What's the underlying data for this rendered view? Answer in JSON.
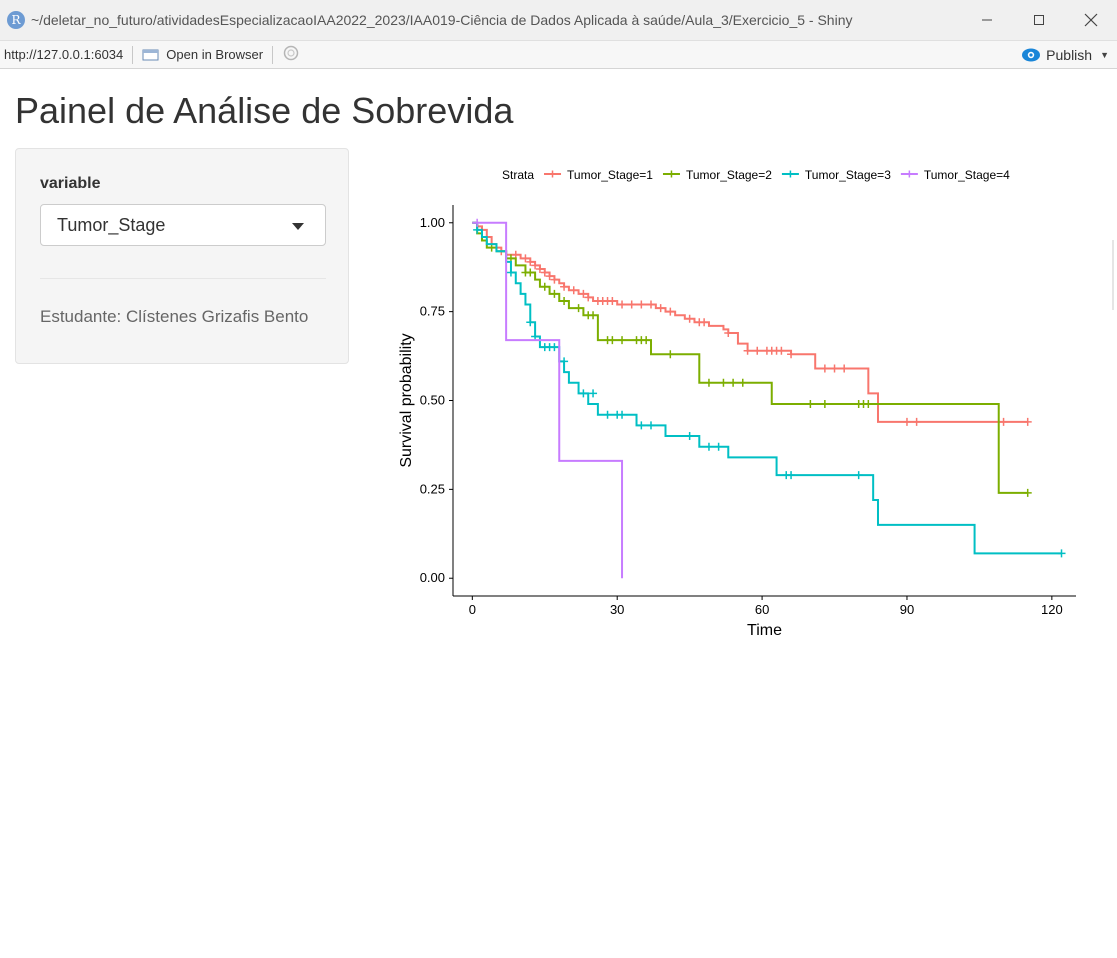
{
  "window": {
    "title": "~/deletar_no_futuro/atividadesEspecializacaoIAA2022_2023/IAA019-Ciência de Dados Aplicada à saúde/Aula_3/Exercicio_5 - Shiny",
    "logo_text": "R"
  },
  "toolbar": {
    "url": "http://127.0.0.1:6034",
    "open_browser_label": "Open in Browser",
    "publish_label": "Publish"
  },
  "page": {
    "title": "Painel de Análise de Sobrevida"
  },
  "sidebar": {
    "variable_label": "variable",
    "variable_value": "Tumor_Stage",
    "student": "Estudante: Clístenes Grizafis Bento"
  },
  "colors": {
    "stage1": "#F8766D",
    "stage2": "#7CAE00",
    "stage3": "#00BFC4",
    "stage4": "#C77CFF"
  },
  "chart_data": {
    "type": "line",
    "xlabel": "Time",
    "ylabel": "Survival probability",
    "xlim": [
      -4,
      125
    ],
    "ylim": [
      -0.05,
      1.05
    ],
    "xticks": [
      0,
      30,
      60,
      90,
      120
    ],
    "yticks": [
      0.0,
      0.25,
      0.5,
      0.75,
      1.0
    ],
    "ytick_labels": [
      "0.00",
      "0.25",
      "0.50",
      "0.75",
      "1.00"
    ],
    "grid": false,
    "legend": {
      "title": "Strata",
      "position": "top"
    },
    "series": [
      {
        "name": "Tumor_Stage=1",
        "color": "#F8766D",
        "x": [
          0,
          1,
          2,
          3,
          4,
          5,
          6,
          7,
          8,
          10,
          12,
          13,
          14,
          15,
          16,
          17,
          18,
          19,
          20,
          22,
          24,
          25,
          30,
          38,
          40,
          42,
          44,
          46,
          47,
          49,
          52,
          53,
          55,
          57,
          60,
          66,
          71,
          75,
          82,
          84,
          88,
          115
        ],
        "y": [
          1.0,
          0.99,
          0.98,
          0.96,
          0.94,
          0.93,
          0.92,
          0.91,
          0.91,
          0.9,
          0.89,
          0.88,
          0.87,
          0.86,
          0.85,
          0.84,
          0.83,
          0.82,
          0.81,
          0.8,
          0.79,
          0.78,
          0.77,
          0.76,
          0.75,
          0.74,
          0.73,
          0.72,
          0.72,
          0.71,
          0.7,
          0.69,
          0.66,
          0.64,
          0.64,
          0.63,
          0.59,
          0.59,
          0.52,
          0.44,
          0.44,
          0.44
        ],
        "censored": [
          [
            2,
            0.98
          ],
          [
            6,
            0.92
          ],
          [
            9,
            0.91
          ],
          [
            11,
            0.9
          ],
          [
            12,
            0.89
          ],
          [
            13,
            0.88
          ],
          [
            14,
            0.87
          ],
          [
            15,
            0.86
          ],
          [
            16,
            0.85
          ],
          [
            17,
            0.84
          ],
          [
            19,
            0.82
          ],
          [
            21,
            0.81
          ],
          [
            23,
            0.8
          ],
          [
            24,
            0.79
          ],
          [
            26,
            0.78
          ],
          [
            27,
            0.78
          ],
          [
            28,
            0.78
          ],
          [
            29,
            0.78
          ],
          [
            31,
            0.77
          ],
          [
            33,
            0.77
          ],
          [
            35,
            0.77
          ],
          [
            37,
            0.77
          ],
          [
            39,
            0.76
          ],
          [
            41,
            0.75
          ],
          [
            45,
            0.73
          ],
          [
            47,
            0.72
          ],
          [
            48,
            0.72
          ],
          [
            53,
            0.69
          ],
          [
            57,
            0.64
          ],
          [
            59,
            0.64
          ],
          [
            61,
            0.64
          ],
          [
            62,
            0.64
          ],
          [
            63,
            0.64
          ],
          [
            64,
            0.64
          ],
          [
            66,
            0.63
          ],
          [
            73,
            0.59
          ],
          [
            75,
            0.59
          ],
          [
            77,
            0.59
          ],
          [
            90,
            0.44
          ],
          [
            92,
            0.44
          ],
          [
            110,
            0.44
          ],
          [
            115,
            0.44
          ]
        ]
      },
      {
        "name": "Tumor_Stage=2",
        "color": "#7CAE00",
        "x": [
          0,
          1,
          2,
          3,
          5,
          7,
          9,
          11,
          13,
          14,
          16,
          18,
          20,
          23,
          26,
          30,
          37,
          40,
          47,
          62,
          109,
          115
        ],
        "y": [
          1.0,
          0.97,
          0.95,
          0.93,
          0.92,
          0.9,
          0.88,
          0.86,
          0.84,
          0.82,
          0.8,
          0.78,
          0.76,
          0.74,
          0.67,
          0.67,
          0.63,
          0.63,
          0.55,
          0.49,
          0.24,
          0.24
        ],
        "censored": [
          [
            4,
            0.93
          ],
          [
            8,
            0.9
          ],
          [
            11,
            0.86
          ],
          [
            12,
            0.86
          ],
          [
            15,
            0.82
          ],
          [
            17,
            0.8
          ],
          [
            19,
            0.78
          ],
          [
            22,
            0.76
          ],
          [
            24,
            0.74
          ],
          [
            25,
            0.74
          ],
          [
            28,
            0.67
          ],
          [
            29,
            0.67
          ],
          [
            31,
            0.67
          ],
          [
            34,
            0.67
          ],
          [
            35,
            0.67
          ],
          [
            36,
            0.67
          ],
          [
            41,
            0.63
          ],
          [
            49,
            0.55
          ],
          [
            52,
            0.55
          ],
          [
            54,
            0.55
          ],
          [
            56,
            0.55
          ],
          [
            70,
            0.49
          ],
          [
            73,
            0.49
          ],
          [
            80,
            0.49
          ],
          [
            81,
            0.49
          ],
          [
            82,
            0.49
          ],
          [
            115,
            0.24
          ]
        ]
      },
      {
        "name": "Tumor_Stage=3",
        "color": "#00BFC4",
        "x": [
          0,
          1,
          2,
          3,
          5,
          7,
          8,
          9,
          10,
          11,
          12,
          13,
          14,
          18,
          19,
          20,
          22,
          24,
          26,
          28,
          33,
          34,
          36,
          38,
          40,
          44,
          47,
          49,
          53,
          59,
          63,
          82,
          83,
          84,
          104,
          122
        ],
        "y": [
          1.0,
          0.98,
          0.96,
          0.94,
          0.92,
          0.89,
          0.86,
          0.83,
          0.8,
          0.77,
          0.72,
          0.68,
          0.65,
          0.61,
          0.58,
          0.55,
          0.52,
          0.49,
          0.46,
          0.46,
          0.46,
          0.43,
          0.43,
          0.43,
          0.4,
          0.4,
          0.37,
          0.37,
          0.34,
          0.34,
          0.29,
          0.29,
          0.22,
          0.15,
          0.07,
          0.07
        ],
        "censored": [
          [
            1,
            0.98
          ],
          [
            8,
            0.86
          ],
          [
            12,
            0.72
          ],
          [
            13,
            0.68
          ],
          [
            15,
            0.65
          ],
          [
            16,
            0.65
          ],
          [
            17,
            0.65
          ],
          [
            19,
            0.61
          ],
          [
            23,
            0.52
          ],
          [
            25,
            0.52
          ],
          [
            28,
            0.46
          ],
          [
            30,
            0.46
          ],
          [
            31,
            0.46
          ],
          [
            35,
            0.43
          ],
          [
            37,
            0.43
          ],
          [
            45,
            0.4
          ],
          [
            49,
            0.37
          ],
          [
            51,
            0.37
          ],
          [
            65,
            0.29
          ],
          [
            66,
            0.29
          ],
          [
            80,
            0.29
          ],
          [
            122,
            0.07
          ]
        ]
      },
      {
        "name": "Tumor_Stage=4",
        "color": "#C77CFF",
        "x": [
          0,
          7,
          18,
          31,
          31
        ],
        "y": [
          1.0,
          0.67,
          0.33,
          0.33,
          0.0
        ],
        "censored": [
          [
            1,
            1.0
          ]
        ]
      }
    ]
  }
}
